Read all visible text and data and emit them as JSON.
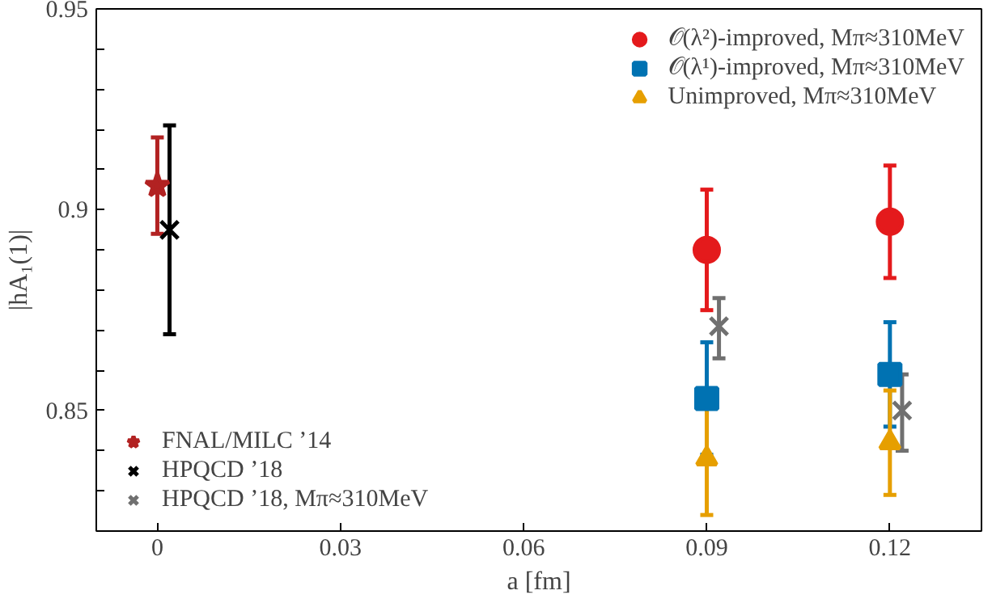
{
  "chart_data": {
    "type": "scatter",
    "xlabel": "a [fm]",
    "ylabel": "|hA₁(1)|",
    "xlim": [
      -0.01,
      0.135
    ],
    "ylim": [
      0.82,
      0.95
    ],
    "xticks": [
      0,
      0.03,
      0.06,
      0.09,
      0.12
    ],
    "yticks": [
      {
        "value": 0.83,
        "label": null
      },
      {
        "value": 0.84,
        "label": null
      },
      0.85,
      {
        "value": 0.86,
        "label": null
      },
      {
        "value": 0.87,
        "label": null
      },
      {
        "value": 0.88,
        "label": null
      },
      {
        "value": 0.89,
        "label": null
      },
      0.9,
      {
        "value": 0.91,
        "label": null
      },
      {
        "value": 0.92,
        "label": null
      },
      {
        "value": 0.93,
        "label": null
      },
      {
        "value": 0.94,
        "label": null
      },
      0.95
    ],
    "legend": [
      "top right",
      "bottom left"
    ],
    "grid": false,
    "series": [
      {
        "name": "𝒪(λ²)-improved, Mπ≈310MeV",
        "color": "#e41a1c",
        "marker": "circle",
        "x": [
          0.09,
          0.12
        ],
        "values": [
          0.89,
          0.897
        ],
        "errors": [
          [
            0.875,
            0.905
          ],
          [
            0.883,
            0.911
          ]
        ]
      },
      {
        "name": "𝒪(λ¹)-improved, Mπ≈310MeV",
        "color": "#0072b2",
        "marker": "square",
        "x": [
          0.09,
          0.12
        ],
        "values": [
          0.853,
          0.859
        ],
        "errors": [
          [
            0.839,
            0.867
          ],
          [
            0.846,
            0.872
          ]
        ]
      },
      {
        "name": "Unimproved, Mπ≈310MeV",
        "color": "#e69f00",
        "marker": "triangle",
        "x": [
          0.09,
          0.12
        ],
        "values": [
          0.838,
          0.842
        ],
        "errors": [
          [
            0.824,
            0.851
          ],
          [
            0.829,
            0.855
          ]
        ]
      },
      {
        "name": "FNAL/MILC ’14",
        "color": "#b22222",
        "marker": "star",
        "x": [
          0
        ],
        "values": [
          0.906
        ],
        "errors": [
          [
            0.894,
            0.918
          ]
        ]
      },
      {
        "name": "HPQCD ’18",
        "color": "#000000",
        "marker": "cross",
        "x": [
          0.002
        ],
        "values": [
          0.895
        ],
        "errors": [
          [
            0.869,
            0.921
          ]
        ]
      },
      {
        "name": "HPQCD ’18, Mπ≈310MeV",
        "color": "#707070",
        "marker": "cross",
        "x": [
          0.092,
          0.122
        ],
        "values": [
          0.871,
          0.85
        ],
        "errors": [
          [
            0.863,
            0.878
          ],
          [
            0.84,
            0.859
          ]
        ]
      }
    ]
  }
}
